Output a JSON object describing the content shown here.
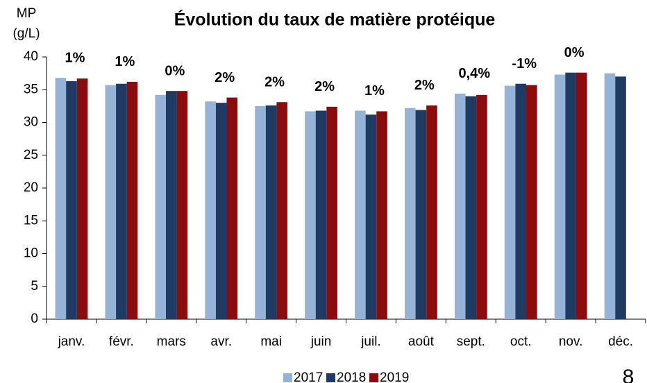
{
  "chart_data": {
    "type": "bar",
    "title": "Évolution du taux de matière protéique",
    "y_axis_label": [
      "MP",
      "(g/L)"
    ],
    "categories": [
      "janv.",
      "févr.",
      "mars",
      "avr.",
      "mai",
      "juin",
      "juil.",
      "août",
      "sept.",
      "oct.",
      "nov.",
      "déc."
    ],
    "series": [
      {
        "name": "2017",
        "color": "#95b3d7",
        "values": [
          36.8,
          35.7,
          34.2,
          33.2,
          32.5,
          31.7,
          31.8,
          32.2,
          34.4,
          35.6,
          37.3,
          37.5
        ]
      },
      {
        "name": "2018",
        "color": "#1f3b63",
        "values": [
          36.3,
          35.9,
          34.8,
          33.0,
          32.6,
          31.8,
          31.2,
          31.9,
          34.0,
          35.9,
          37.6,
          37.0
        ]
      },
      {
        "name": "2019",
        "color": "#8b0c0c",
        "values": [
          36.7,
          36.2,
          34.8,
          33.8,
          33.1,
          32.4,
          31.7,
          32.6,
          34.2,
          35.7,
          37.6,
          null
        ]
      }
    ],
    "annotations": [
      "1%",
      "1%",
      "0%",
      "2%",
      "2%",
      "2%",
      "1%",
      "2%",
      "0,4%",
      "-1%",
      "0%",
      null
    ],
    "ylim": [
      0,
      40
    ],
    "yticks": [
      0,
      5,
      10,
      15,
      20,
      25,
      30,
      35,
      40
    ],
    "grid": false,
    "legend": "bottom",
    "page_number": "8"
  }
}
